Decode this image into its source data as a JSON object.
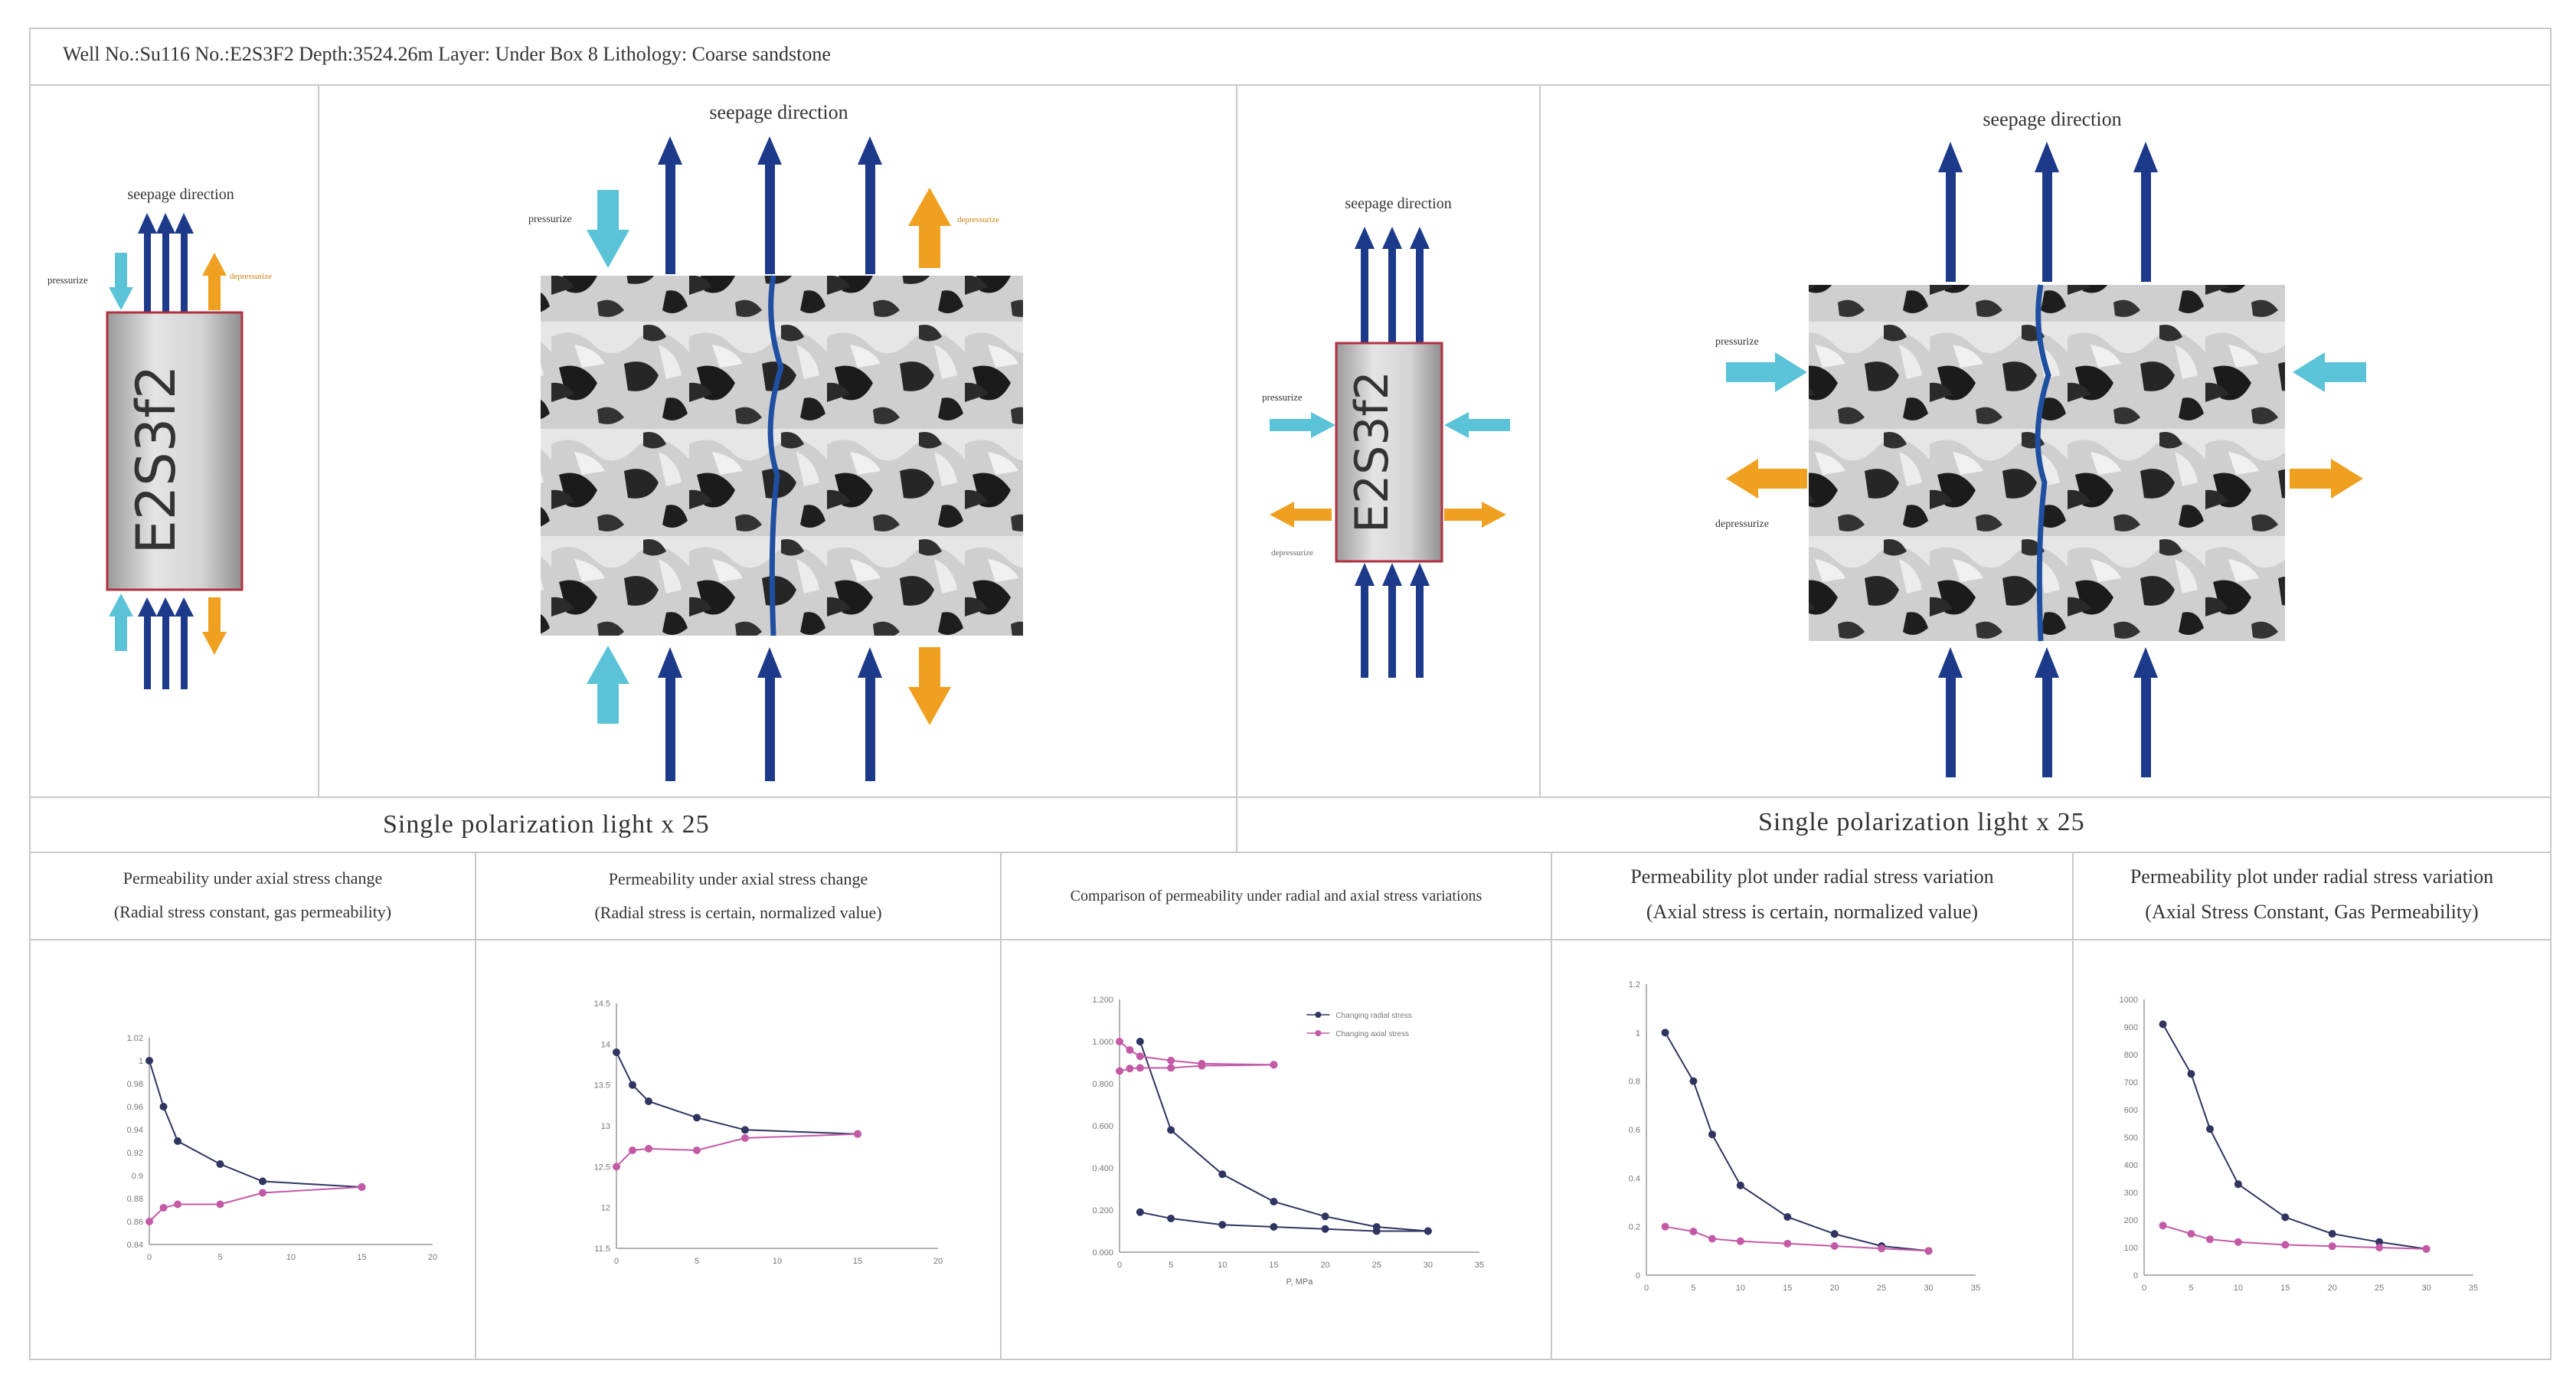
{
  "header": {
    "text": "Well No.:Su116  No.:E2S3F2  Depth:3524.26m  Layer: Under Box 8  Lithology: Coarse sandstone"
  },
  "left_panel": {
    "small": {
      "seepage_label": "seepage direction",
      "pressurize_label": "pressurize",
      "depressurize_label": "depressurize",
      "core_label": "E2S3f2"
    },
    "large": {
      "seepage_label": "seepage direction",
      "pressurize_label": "pressurize",
      "depressurize_label": "depressurize"
    },
    "caption": "Single polarization light x 25"
  },
  "right_panel": {
    "small": {
      "seepage_label": "seepage direction",
      "pressurize_label": "pressurize",
      "depressurize_label": "depressurize",
      "core_label": "E2S3f2"
    },
    "large": {
      "seepage_label": "seepage direction",
      "pressurize_label": "pressurize",
      "depressurize_label": "depressurize"
    },
    "caption": "Single polarization light x 25"
  },
  "colors": {
    "blue_arrow": "#1d3a8a",
    "cyan_arrow": "#5bc3d8",
    "orange_arrow": "#f0a020",
    "series_dark": "#2f3560",
    "series_pink": "#c45aa6"
  },
  "charts": [
    {
      "title_line1": "Permeability under axial stress change",
      "title_line2": "(Radial stress constant, gas permeability)",
      "chart_data": {
        "type": "line",
        "xlim": [
          0,
          20
        ],
        "ylim": [
          0.84,
          1.02
        ],
        "xticks": [
          "0",
          "5",
          "10",
          "15",
          "20"
        ],
        "yticks": [
          "0.84",
          "0.86",
          "0.88",
          "0.9",
          "0.92",
          "0.94",
          "0.96",
          "0.98",
          "1",
          "1.02"
        ],
        "series": [
          {
            "x": [
              0,
              1,
              2,
              5,
              8,
              15
            ],
            "y": [
              1.0,
              0.96,
              0.93,
              0.91,
              0.895,
              0.89
            ],
            "color": "#2f3560"
          },
          {
            "x": [
              0,
              1,
              2,
              5,
              8,
              15
            ],
            "y": [
              0.86,
              0.872,
              0.875,
              0.875,
              0.885,
              0.89
            ],
            "color": "#c45aa6"
          }
        ]
      }
    },
    {
      "title_line1": "Permeability under axial stress change",
      "title_line2": "(Radial stress is certain, normalized value)",
      "chart_data": {
        "type": "line",
        "xlim": [
          0,
          20
        ],
        "ylim": [
          11.5,
          14.5
        ],
        "xticks": [
          "0",
          "5",
          "10",
          "15",
          "20"
        ],
        "yticks": [
          "11.5",
          "12",
          "12.5",
          "13",
          "13.5",
          "14",
          "14.5"
        ],
        "series": [
          {
            "x": [
              0,
              1,
              2,
              5,
              8,
              15
            ],
            "y": [
              13.9,
              13.5,
              13.3,
              13.1,
              12.95,
              12.9
            ],
            "color": "#2f3560"
          },
          {
            "x": [
              0,
              1,
              2,
              5,
              8,
              15
            ],
            "y": [
              12.5,
              12.7,
              12.72,
              12.7,
              12.85,
              12.9
            ],
            "color": "#c45aa6"
          }
        ]
      }
    },
    {
      "title_line1": "Comparison of permeability under radial and axial stress variations",
      "title_line2": "",
      "chart_data": {
        "type": "line",
        "xlim": [
          0,
          35
        ],
        "ylim": [
          0,
          1.2
        ],
        "xticks": [
          "0",
          "5",
          "10",
          "15",
          "20",
          "25",
          "30",
          "35"
        ],
        "yticks": [
          "0.000",
          "0.200",
          "0.400",
          "0.600",
          "0.800",
          "1.000",
          "1.200"
        ],
        "xlabel": "P, MPa",
        "series": [
          {
            "name": "Changing radial stress",
            "x": [
              2,
              5,
              10,
              15,
              20,
              25,
              30
            ],
            "y": [
              1.0,
              0.58,
              0.37,
              0.24,
              0.17,
              0.12,
              0.1
            ],
            "color": "#2f3560"
          },
          {
            "name": "Changing axial stress",
            "x": [
              0,
              1,
              2,
              5,
              8,
              15
            ],
            "y": [
              1.0,
              0.96,
              0.93,
              0.91,
              0.895,
              0.89
            ],
            "color": "#c45aa6"
          },
          {
            "x": [
              0,
              1,
              2,
              5,
              8,
              15
            ],
            "y": [
              0.86,
              0.872,
              0.875,
              0.875,
              0.885,
              0.89
            ],
            "color": "#c45aa6"
          },
          {
            "x": [
              2,
              5,
              10,
              15,
              20,
              25,
              30
            ],
            "y": [
              0.19,
              0.16,
              0.13,
              0.12,
              0.11,
              0.1,
              0.1
            ],
            "color": "#2f3560"
          }
        ]
      }
    },
    {
      "title_line1": "Permeability plot under radial stress variation",
      "title_line2": "(Axial stress is certain, normalized value)",
      "chart_data": {
        "type": "line",
        "xlim": [
          0,
          35
        ],
        "ylim": [
          0,
          1.2
        ],
        "xticks": [
          "0",
          "5",
          "10",
          "15",
          "20",
          "25",
          "30",
          "35"
        ],
        "yticks": [
          "0",
          "0.2",
          "0.4",
          "0.6",
          "0.8",
          "1",
          "1.2"
        ],
        "series": [
          {
            "x": [
              2,
              5,
              7,
              10,
              15,
              20,
              25,
              30
            ],
            "y": [
              1.0,
              0.8,
              0.58,
              0.37,
              0.24,
              0.17,
              0.12,
              0.1
            ],
            "color": "#2f3560"
          },
          {
            "x": [
              2,
              5,
              7,
              10,
              15,
              20,
              25,
              30
            ],
            "y": [
              0.2,
              0.18,
              0.15,
              0.14,
              0.13,
              0.12,
              0.11,
              0.1
            ],
            "color": "#c45aa6"
          }
        ]
      }
    },
    {
      "title_line1": "Permeability plot under radial stress variation",
      "title_line2": "(Axial Stress Constant, Gas Permeability)",
      "chart_data": {
        "type": "line",
        "xlim": [
          0,
          35
        ],
        "ylim": [
          0,
          1000
        ],
        "xticks": [
          "0",
          "5",
          "10",
          "15",
          "20",
          "25",
          "30",
          "35"
        ],
        "yticks": [
          "0",
          "100",
          "200",
          "300",
          "400",
          "500",
          "600",
          "700",
          "800",
          "900",
          "1000"
        ],
        "series": [
          {
            "x": [
              2,
              5,
              7,
              10,
              15,
              20,
              25,
              30
            ],
            "y": [
              910,
              730,
              530,
              330,
              210,
              150,
              120,
              95
            ],
            "color": "#2f3560"
          },
          {
            "x": [
              2,
              5,
              7,
              10,
              15,
              20,
              25,
              30
            ],
            "y": [
              180,
              150,
              130,
              120,
              110,
              105,
              100,
              95
            ],
            "color": "#c45aa6"
          }
        ]
      }
    }
  ]
}
